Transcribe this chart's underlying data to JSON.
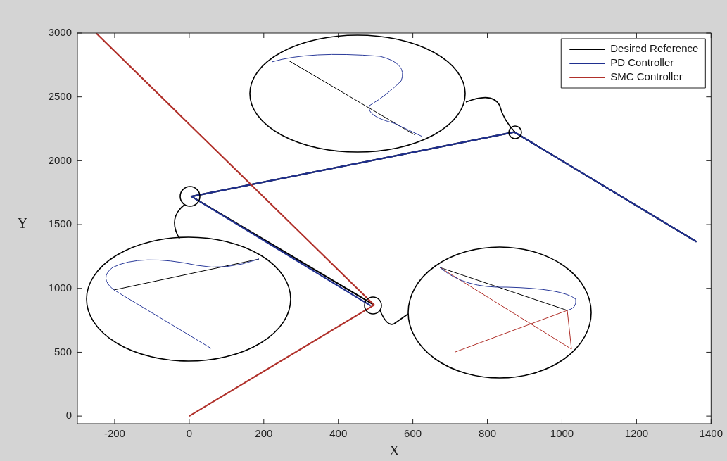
{
  "chart_data": {
    "type": "line",
    "xlabel": "X",
    "ylabel": "Y",
    "xlim": [
      -300,
      1400
    ],
    "ylim": [
      -60,
      3000
    ],
    "xticks": [
      -200,
      0,
      200,
      400,
      600,
      800,
      1000,
      1200,
      1400
    ],
    "yticks": [
      0,
      500,
      1000,
      1500,
      2000,
      2500,
      3000
    ],
    "grid": false,
    "legend": "top right",
    "line_style": "solid",
    "series": [
      {
        "name": "Desired Reference",
        "color": "#000000",
        "x": [
          496,
          6,
          872,
          1361
        ],
        "values": [
          870,
          1720,
          2225,
          1365
        ]
      },
      {
        "name": "PD Controller",
        "color": "#1f2f8f",
        "x": [
          487,
          6,
          872,
          1361
        ],
        "values": [
          864,
          1720,
          2225,
          1365
        ]
      },
      {
        "name": "SMC Controller",
        "color": "#b0302a",
        "x": [
          0,
          496,
          -250
        ],
        "values": [
          0,
          870,
          3000
        ]
      }
    ]
  }
}
